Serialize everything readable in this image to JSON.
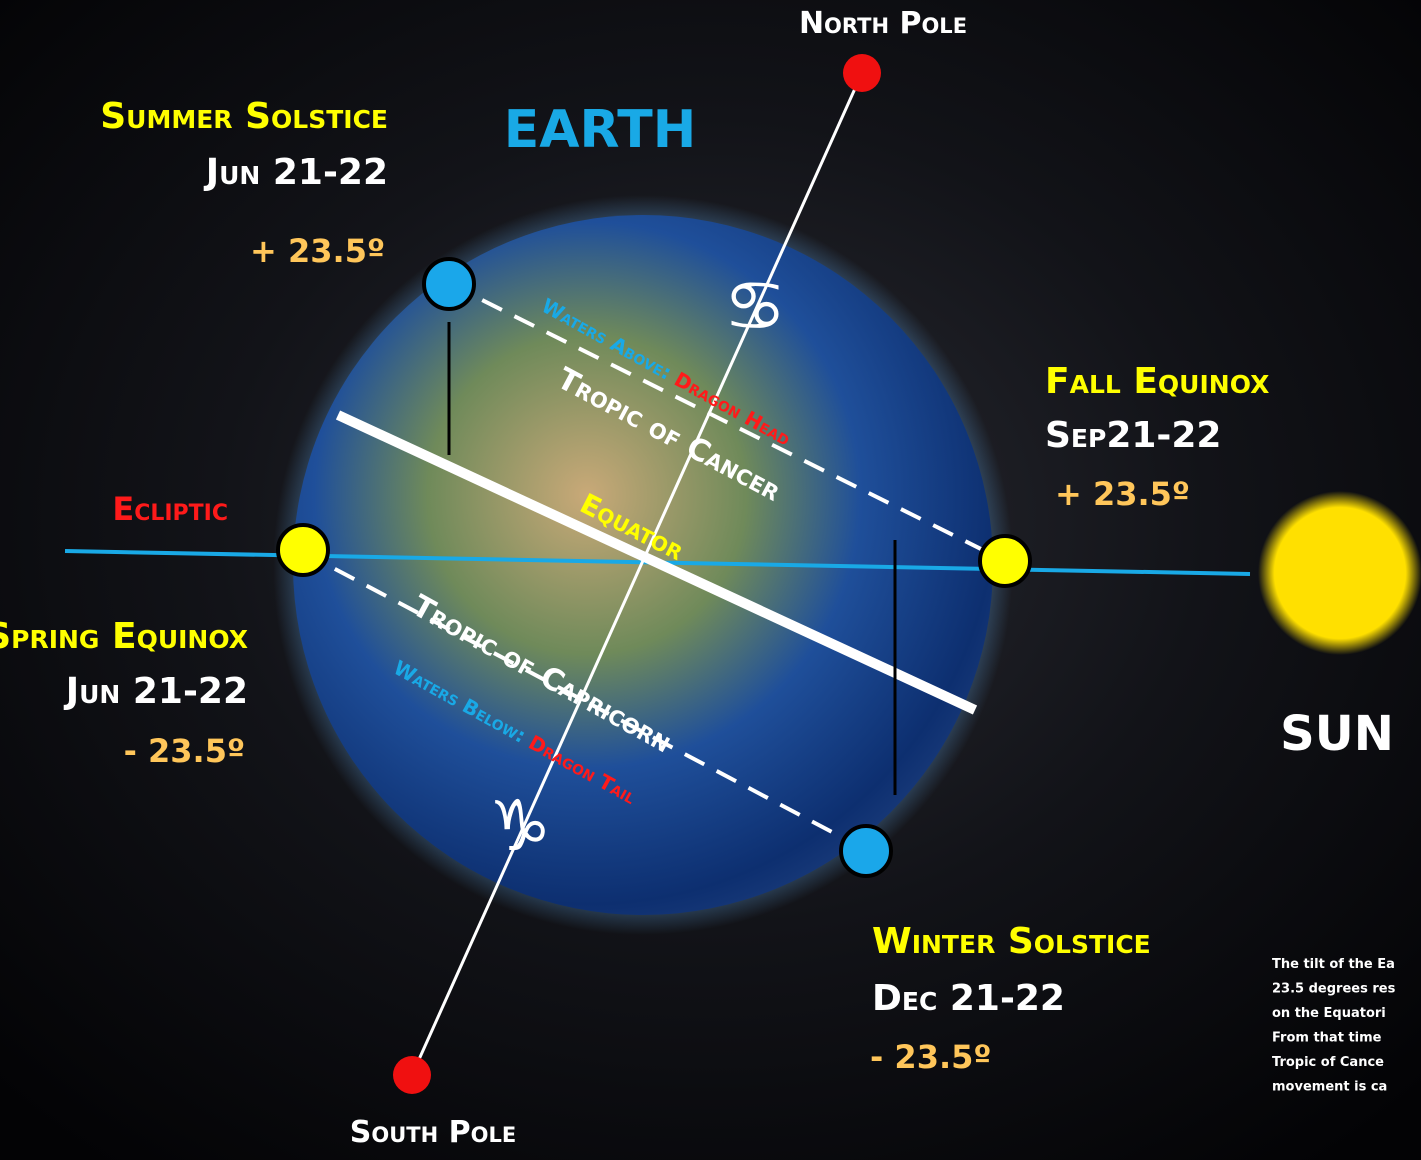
{
  "labels": {
    "north_pole": "North Pole",
    "south_pole": "South Pole",
    "earth": "EARTH",
    "sun": "SUN",
    "ecliptic": "Ecliptic"
  },
  "summer_solstice": {
    "title": "Summer Solstice",
    "date": "Jun 21-22",
    "angle": "+ 23.5º"
  },
  "fall_equinox": {
    "title": "Fall Equinox",
    "date": "Sep21-22",
    "angle": "+ 23.5º"
  },
  "spring_equinox": {
    "title": "Spring Equinox",
    "date": "Jun 21-22",
    "angle": "- 23.5º"
  },
  "winter_solstice": {
    "title": "Winter Solstice",
    "date": "Dec 21-22",
    "angle": "- 23.5º"
  },
  "lines": {
    "waters_above": "Waters Above: ",
    "dragon_head": "Dragon Head",
    "tropic_cancer": "Tropic of Cancer",
    "equator": "Equator",
    "tropic_capricorn": "Tropic of Capricorn",
    "waters_below": "Waters Below: ",
    "dragon_tail": "Dragon Tail",
    "cancer_symbol": "♋",
    "capricorn_symbol": "♑"
  },
  "note": {
    "lines": [
      "The tilt of the Ea",
      "23.5 degrees res",
      "on the Equatori",
      "From that time",
      "Tropic of Cance",
      "movement is ca"
    ]
  }
}
